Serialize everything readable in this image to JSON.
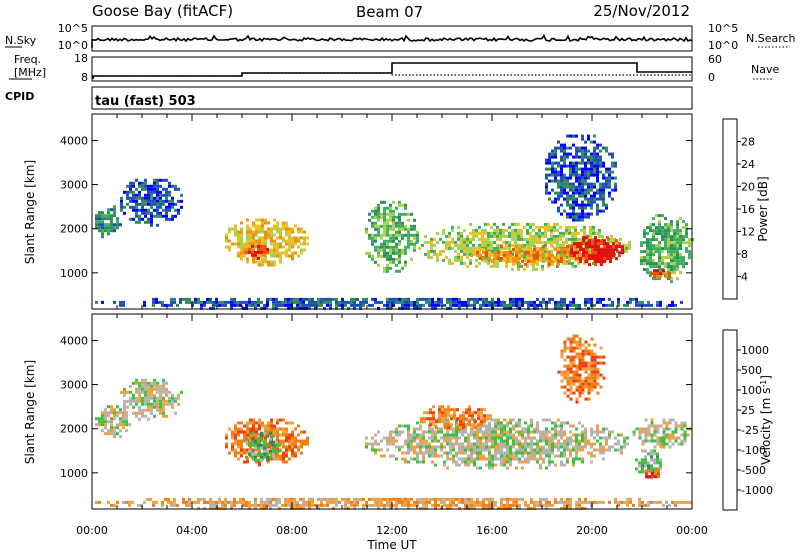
{
  "header": {
    "title": "Goose Bay (fitACF)",
    "beam": "Beam 07",
    "date": "25/Nov/2012"
  },
  "nsky_panel": {
    "left_label": "N.Sky",
    "right_label": "N.Search",
    "left_ticks": [
      "10^5",
      "10^0"
    ],
    "right_ticks": [
      "10^5",
      "10^0"
    ]
  },
  "freq_panel": {
    "left_label_line1": "Freq.",
    "left_label_line2": "[MHz]",
    "right_label": "Nave",
    "left_ticks": [
      "18",
      "8"
    ],
    "right_ticks": [
      "60",
      "0"
    ]
  },
  "cpid": {
    "label": "CPID",
    "mode": "tau (fast) 503"
  },
  "colors": {
    "power": [
      "#0000ff",
      "#1f4fb4",
      "#2f8c5a",
      "#3ab060",
      "#a8d04a",
      "#f0c020",
      "#f09010",
      "#f05010",
      "#e01010"
    ],
    "velocity": [
      "#e01010",
      "#f04010",
      "#f08010",
      "#f0a040",
      "#b4b4b4",
      "#40c040",
      "#2f8c5a",
      "#2060a8",
      "#1030c0"
    ]
  },
  "chart_data": [
    {
      "type": "heatmap",
      "name": "power",
      "ylabel": "Slant Range [km]",
      "xlabel": "Time UT",
      "x_ticks": [
        "00:00",
        "04:00",
        "08:00",
        "12:00",
        "16:00",
        "20:00",
        "00:00"
      ],
      "xlim_hours": [
        0,
        24
      ],
      "y_ticks": [
        1000,
        2000,
        3000,
        4000
      ],
      "ylim": [
        180,
        4600
      ],
      "colorbar": {
        "label": "Power [dB]",
        "ticks": [
          "4",
          "8",
          "12",
          "16",
          "20",
          "24",
          "28"
        ]
      },
      "regions": [
        {
          "t0": 0.0,
          "t1": 1.2,
          "r0": 1800,
          "r1": 2600,
          "level": 2
        },
        {
          "t0": 1.0,
          "t1": 3.6,
          "r0": 2100,
          "r1": 3200,
          "level": 1
        },
        {
          "t0": 5.2,
          "t1": 8.6,
          "r0": 1200,
          "r1": 2300,
          "level": 5
        },
        {
          "t0": 6.0,
          "t1": 7.2,
          "r0": 1350,
          "r1": 1700,
          "level": 7
        },
        {
          "t0": 10.8,
          "t1": 13.0,
          "r0": 1000,
          "r1": 2700,
          "level": 3
        },
        {
          "t0": 12.8,
          "t1": 21.5,
          "r0": 1100,
          "r1": 2200,
          "level": 4
        },
        {
          "t0": 15.0,
          "t1": 21.0,
          "r0": 1200,
          "r1": 1700,
          "level": 6
        },
        {
          "t0": 19.0,
          "t1": 21.2,
          "r0": 1200,
          "r1": 1900,
          "level": 8
        },
        {
          "t0": 18.0,
          "t1": 21.0,
          "r0": 2200,
          "r1": 4200,
          "level": 1
        },
        {
          "t0": 21.8,
          "t1": 24.0,
          "r0": 800,
          "r1": 2400,
          "level": 3
        },
        {
          "t0": 22.2,
          "t1": 23.2,
          "r0": 850,
          "r1": 1150,
          "level": 7
        },
        {
          "t0": 0.0,
          "t1": 24.0,
          "r0": 190,
          "r1": 500,
          "level": 1
        }
      ]
    },
    {
      "type": "heatmap",
      "name": "velocity",
      "ylabel": "Slant Range [km]",
      "xlabel": "Time UT",
      "x_ticks": [
        "00:00",
        "04:00",
        "08:00",
        "12:00",
        "16:00",
        "20:00",
        "00:00"
      ],
      "xlim_hours": [
        0,
        24
      ],
      "y_ticks": [
        1000,
        2000,
        3000,
        4000
      ],
      "ylim": [
        180,
        4600
      ],
      "colorbar": {
        "label": "Velocity [m s^-1]",
        "ticks": [
          "1000",
          "500",
          "100",
          "25",
          "-25",
          "-100",
          "-500",
          "-1000"
        ]
      },
      "regions": [
        {
          "t0": 0.0,
          "t1": 1.5,
          "r0": 1800,
          "r1": 2600,
          "level": 4
        },
        {
          "t0": 1.0,
          "t1": 3.6,
          "r0": 2200,
          "r1": 3200,
          "level": 4
        },
        {
          "t0": 5.2,
          "t1": 8.6,
          "r0": 1200,
          "r1": 2300,
          "level": 2
        },
        {
          "t0": 6.0,
          "t1": 7.5,
          "r0": 1200,
          "r1": 2000,
          "level": 5
        },
        {
          "t0": 10.8,
          "t1": 21.5,
          "r0": 1100,
          "r1": 2300,
          "level": 4
        },
        {
          "t0": 13.0,
          "t1": 16.0,
          "r0": 2000,
          "r1": 2600,
          "level": 2
        },
        {
          "t0": 18.5,
          "t1": 20.5,
          "r0": 2600,
          "r1": 4200,
          "level": 2
        },
        {
          "t0": 21.5,
          "t1": 24.0,
          "r0": 1600,
          "r1": 2300,
          "level": 4
        },
        {
          "t0": 21.6,
          "t1": 22.8,
          "r0": 900,
          "r1": 1600,
          "level": 5
        },
        {
          "t0": 22.0,
          "t1": 22.8,
          "r0": 900,
          "r1": 1150,
          "level": 1
        },
        {
          "t0": 0.0,
          "t1": 24.0,
          "r0": 190,
          "r1": 500,
          "level": 3
        }
      ]
    }
  ]
}
